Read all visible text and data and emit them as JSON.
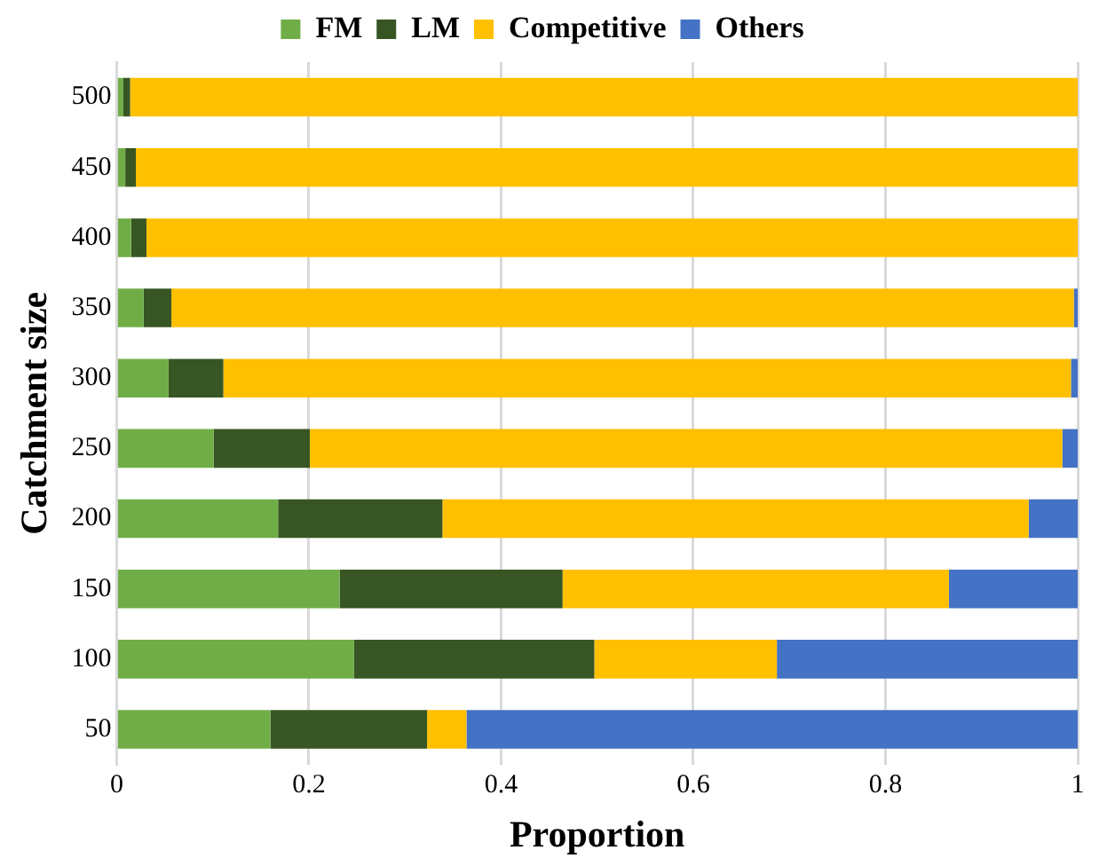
{
  "chart_data": {
    "type": "bar",
    "orientation": "horizontal",
    "stacked": true,
    "xlabel": "Proportion",
    "ylabel": "Catchment size",
    "categories": [
      "500",
      "450",
      "400",
      "350",
      "300",
      "250",
      "200",
      "150",
      "100",
      "50"
    ],
    "series": [
      {
        "name": "FM",
        "color": "#70ad47",
        "values": [
          0.007,
          0.009,
          0.015,
          0.028,
          0.054,
          0.101,
          0.168,
          0.232,
          0.247,
          0.16
        ]
      },
      {
        "name": "LM",
        "color": "#375623",
        "values": [
          0.007,
          0.011,
          0.016,
          0.029,
          0.057,
          0.1,
          0.171,
          0.232,
          0.25,
          0.163
        ]
      },
      {
        "name": "Competitive",
        "color": "#ffc000",
        "values": [
          0.986,
          0.98,
          0.969,
          0.939,
          0.882,
          0.783,
          0.61,
          0.402,
          0.19,
          0.041
        ]
      },
      {
        "name": "Others",
        "color": "#4472c4",
        "values": [
          0,
          0,
          0,
          0.004,
          0.007,
          0.016,
          0.051,
          0.134,
          0.313,
          0.636
        ]
      }
    ],
    "xlim": [
      0,
      1
    ],
    "xticks": [
      0,
      0.2,
      0.4,
      0.6,
      0.8,
      1
    ],
    "grid": "x",
    "legend": "top"
  }
}
